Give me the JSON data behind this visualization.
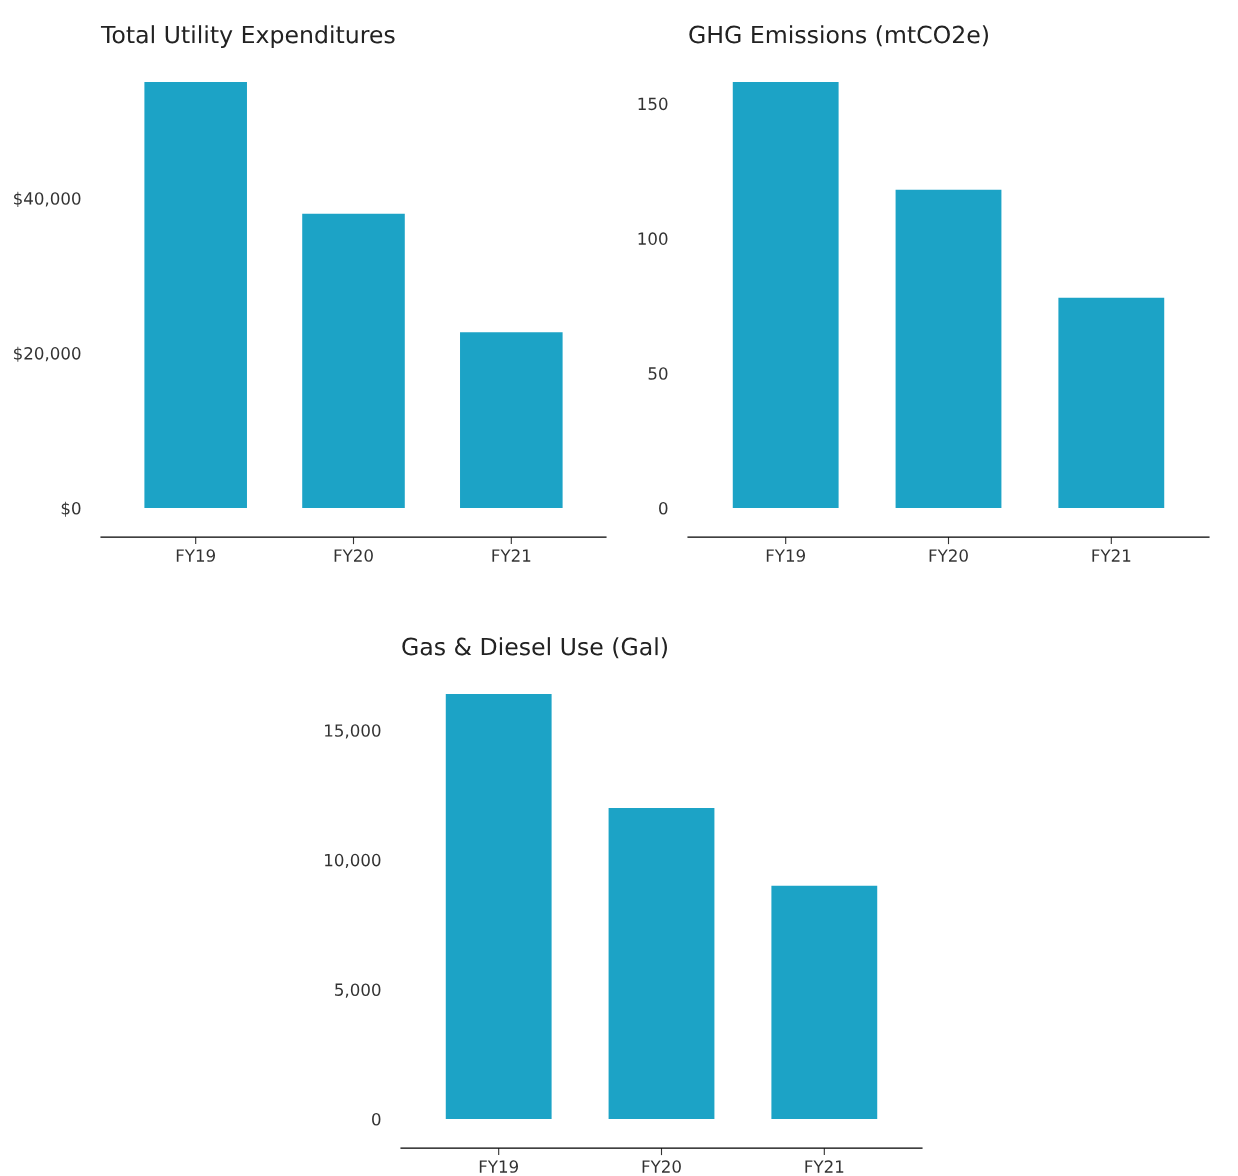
{
  "chart_data": [
    {
      "type": "bar",
      "title": "Total Utility Expenditures",
      "categories": [
        "FY19",
        "FY20",
        "FY21"
      ],
      "values": [
        55000,
        38000,
        22700
      ],
      "color": "#1ca3c6",
      "ylim": [
        0,
        55000
      ],
      "yticks": [
        {
          "value": 0,
          "label": "$0"
        },
        {
          "value": 20000,
          "label": "$20,000"
        },
        {
          "value": 40000,
          "label": "$40,000"
        }
      ]
    },
    {
      "type": "bar",
      "title": "GHG Emissions (mtCO2e)",
      "categories": [
        "FY19",
        "FY20",
        "FY21"
      ],
      "values": [
        158,
        118,
        78
      ],
      "color": "#1ca3c6",
      "ylim": [
        0,
        158
      ],
      "yticks": [
        0,
        50,
        100,
        150
      ]
    },
    {
      "type": "bar",
      "title": "Gas & Diesel Use (Gal)",
      "categories": [
        "FY19",
        "FY20",
        "FY21"
      ],
      "values": [
        16400,
        12000,
        9000
      ],
      "color": "#1ca3c6",
      "ylim": [
        0,
        16400
      ],
      "yticks": [
        0,
        {
          "value": 5000,
          "label": "5,000"
        },
        {
          "value": 10000,
          "label": "10,000"
        },
        {
          "value": 15000,
          "label": "15,000"
        }
      ]
    }
  ]
}
